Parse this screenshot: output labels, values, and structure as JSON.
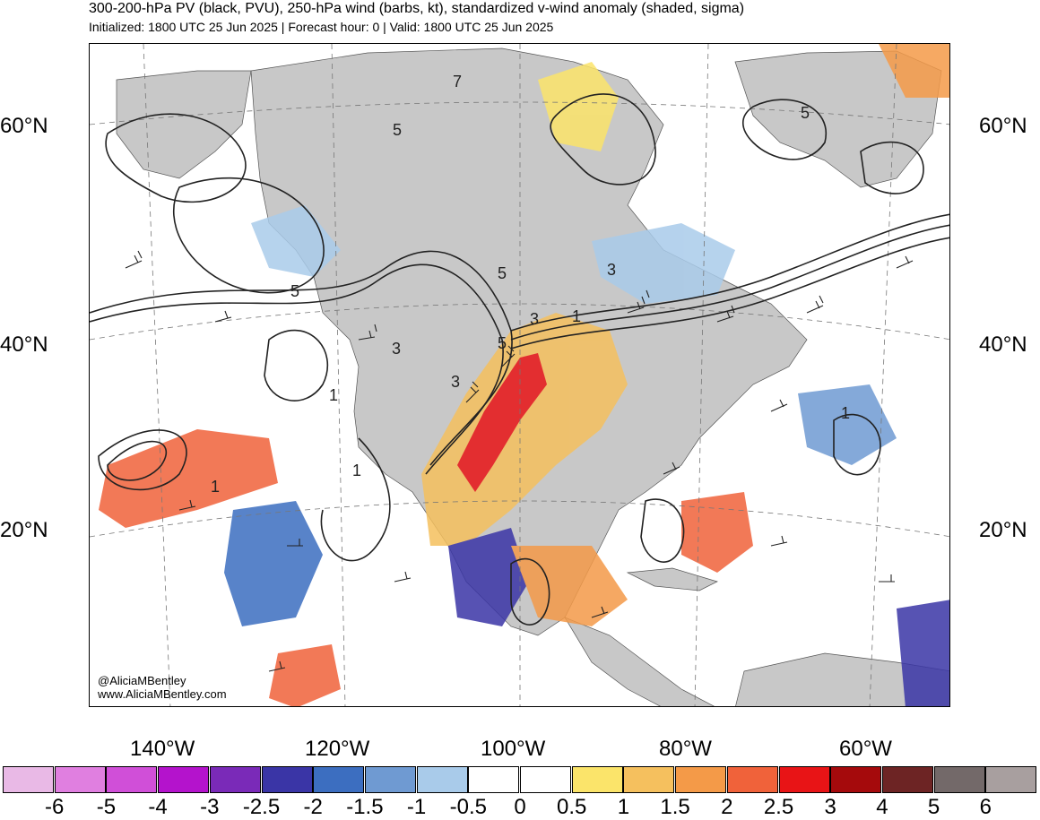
{
  "title": {
    "line1": "300-200-hPa PV (black, PVU), 250-hPa wind (barbs, kt), standardized v-wind anomaly (shaded, sigma)",
    "line2": "Initialized: 1800 UTC 25 Jun 2025 | Forecast hour: 0 | Valid: 1800 UTC 25 Jun 2025"
  },
  "latitude_labels": [
    "60°N",
    "40°N",
    "20°N"
  ],
  "longitude_labels": [
    "140°W",
    "120°W",
    "100°W",
    "80°W",
    "60°W"
  ],
  "contour_labels": [
    "5",
    "7",
    "5",
    "5",
    "3",
    "3",
    "1",
    "3",
    "5",
    "3",
    "1",
    "1",
    "1",
    "1",
    "5"
  ],
  "credit": {
    "handle": "@AliciaMBentley",
    "website": "www.AliciaMBentley.com"
  },
  "colorbar": {
    "colors": [
      "#e9b9e6",
      "#e07fe0",
      "#d04fd8",
      "#b413cc",
      "#7a2ab8",
      "#3a35a6",
      "#3c6ec0",
      "#6f9ad2",
      "#a9cbea",
      "#ffffff",
      "#ffffff",
      "#fbe46a",
      "#f5c05e",
      "#f49a48",
      "#f0623a",
      "#e81416",
      "#a50a0c",
      "#6d2424",
      "#736969",
      "#a89f9f"
    ],
    "labels": [
      "-6",
      "-5",
      "-4",
      "-3",
      "-2.5",
      "-2",
      "-1.5",
      "-1",
      "-0.5",
      "0",
      "0.5",
      "1",
      "1.5",
      "2",
      "2.5",
      "3",
      "4",
      "5",
      "6"
    ]
  }
}
